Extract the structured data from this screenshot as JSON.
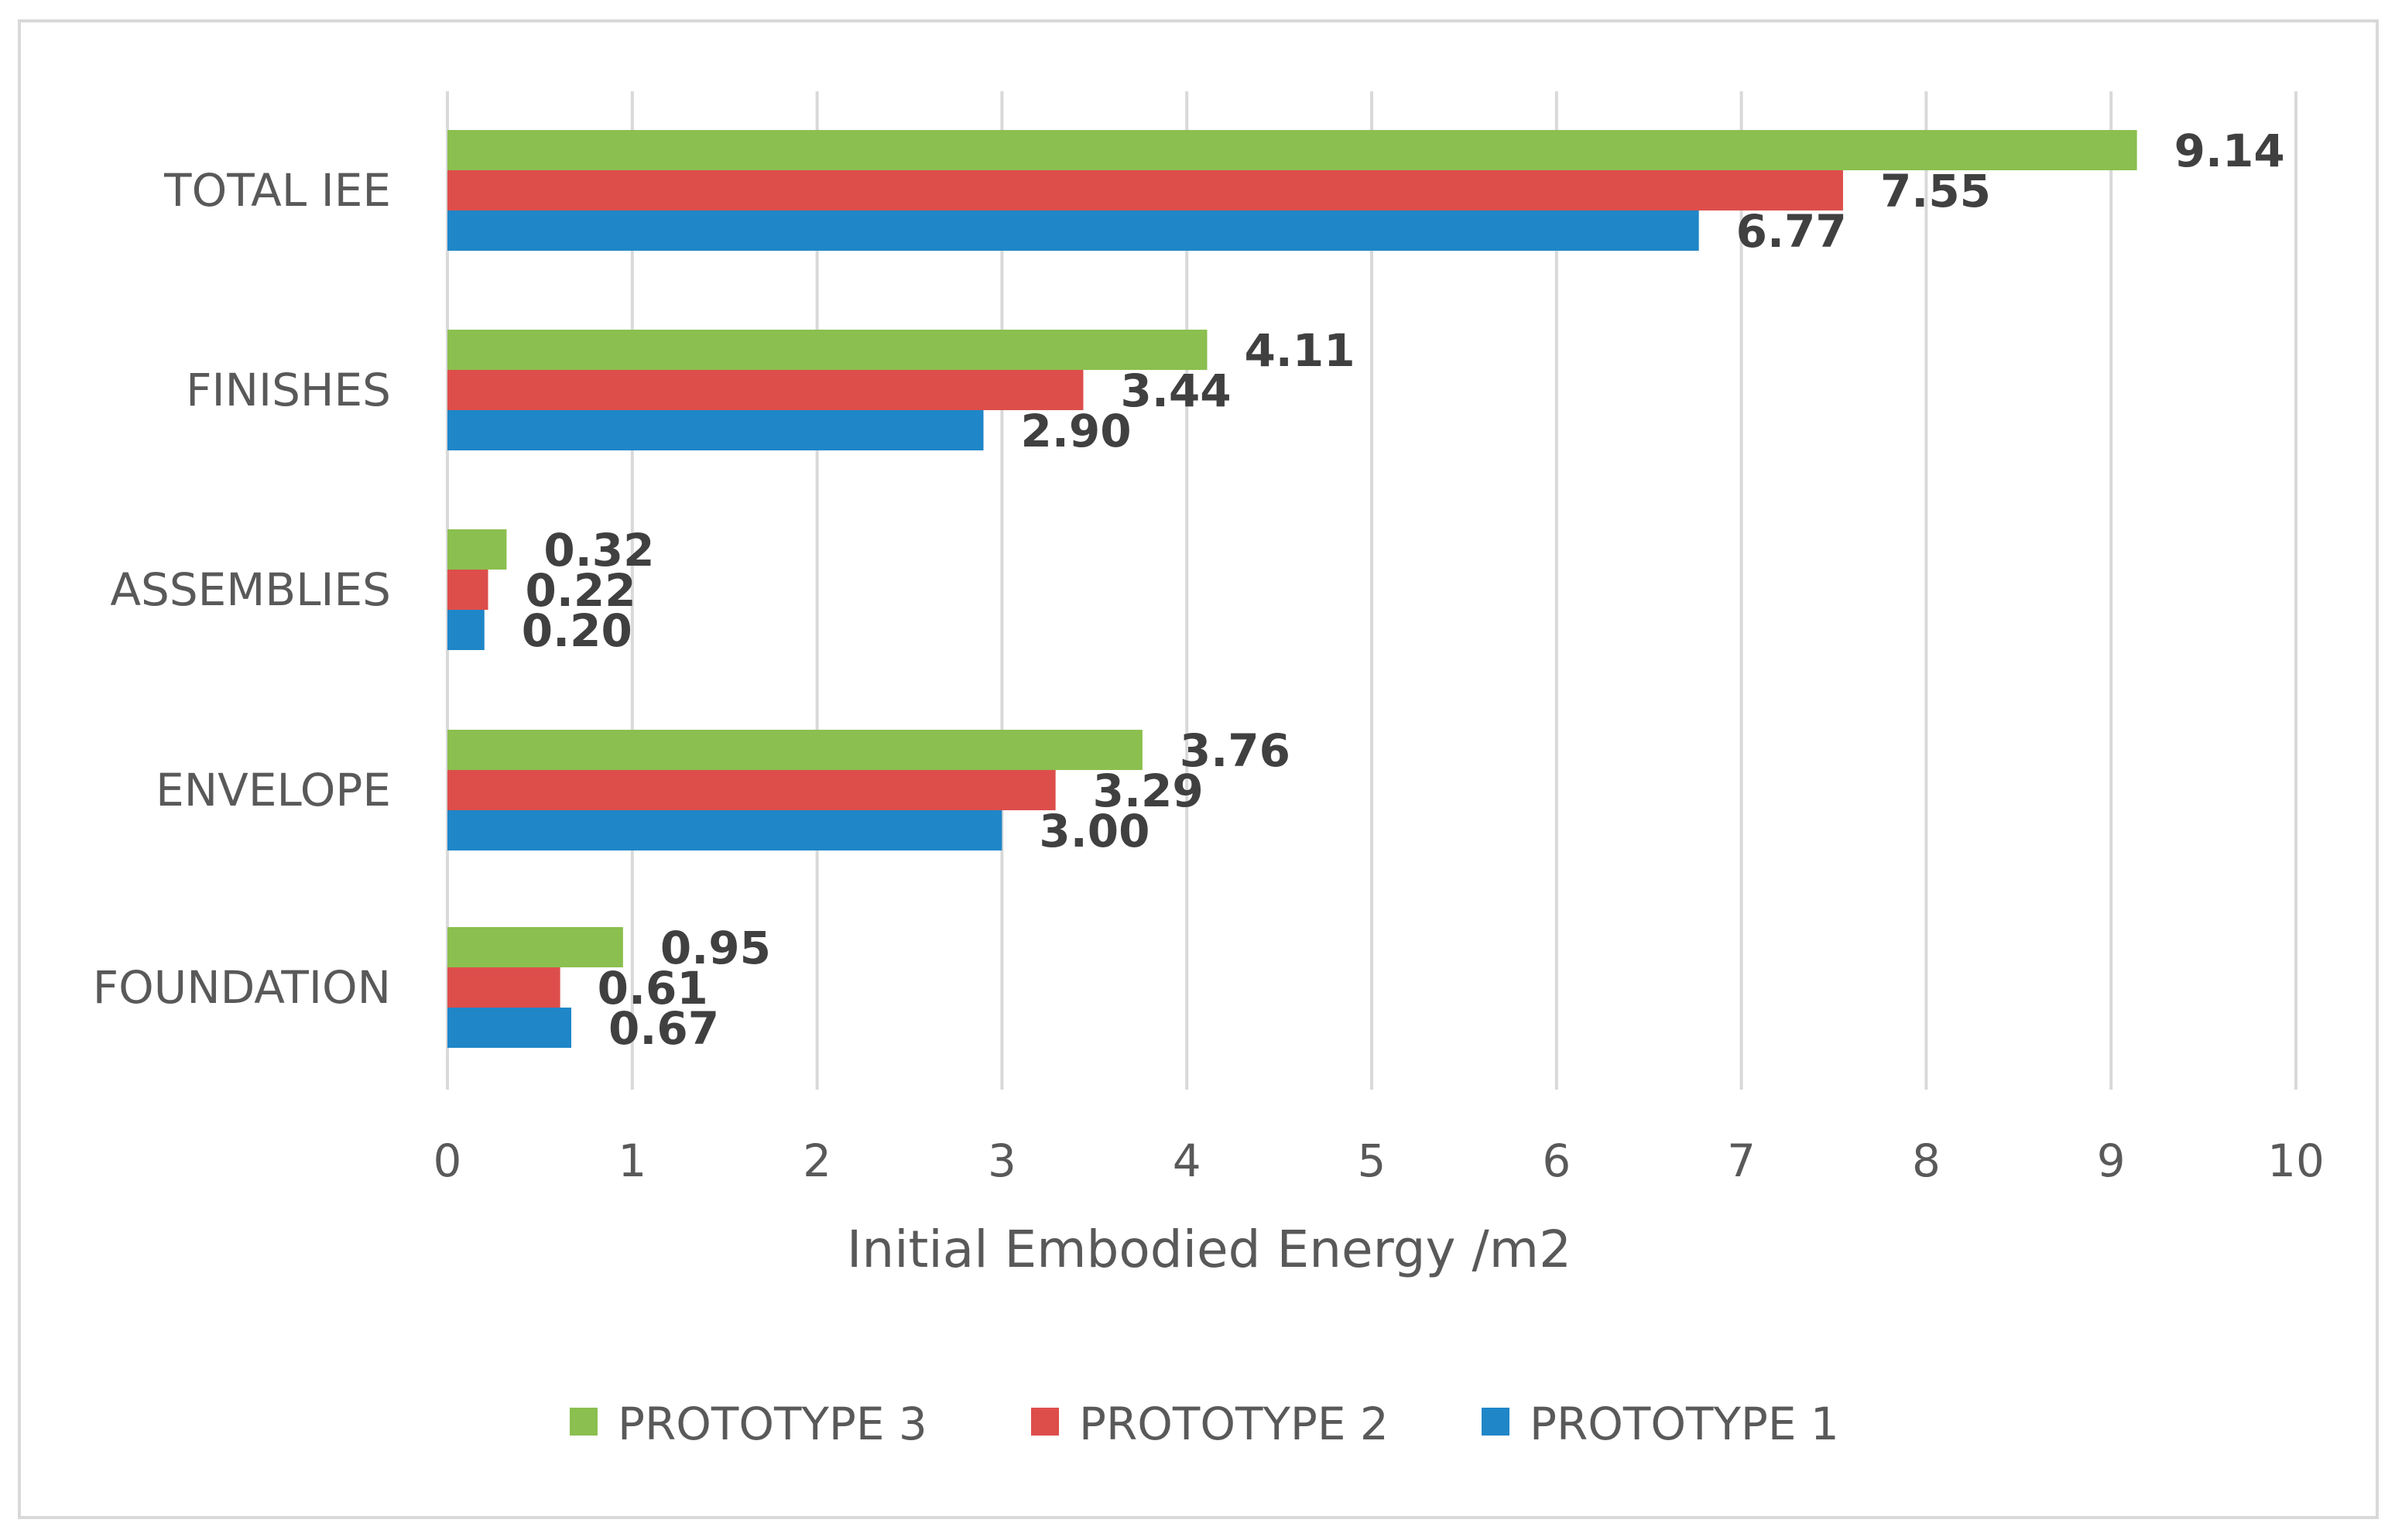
{
  "chart_data": {
    "type": "bar",
    "orientation": "horizontal",
    "title": "",
    "xlabel": "Initial Embodied Energy /m2",
    "ylabel": "",
    "xlim": [
      0,
      10
    ],
    "xticks": [
      "0",
      "1",
      "2",
      "3",
      "4",
      "5",
      "6",
      "7",
      "8",
      "9",
      "10"
    ],
    "grid": true,
    "legend_position": "bottom",
    "categories": [
      "TOTAL IEE",
      "FINISHES",
      "ASSEMBLIES",
      "ENVELOPE",
      "FOUNDATION"
    ],
    "series": [
      {
        "name": "PROTOTYPE 3",
        "color": "#8bbf4f",
        "values": [
          9.14,
          4.11,
          0.32,
          3.76,
          0.95
        ],
        "labels": [
          "9.14",
          "4.11",
          "0.32",
          "3.76",
          "0.95"
        ]
      },
      {
        "name": "PROTOTYPE 2",
        "color": "#dd4e4b",
        "values": [
          7.55,
          3.44,
          0.22,
          3.29,
          0.61
        ],
        "labels": [
          "7.55",
          "3.44",
          "0.22",
          "3.29",
          "0.61"
        ]
      },
      {
        "name": "PROTOTYPE 1",
        "color": "#1f86c8",
        "values": [
          6.77,
          2.9,
          0.2,
          3.0,
          0.67
        ],
        "labels": [
          "6.77",
          "2.90",
          "0.20",
          "3.00",
          "0.67"
        ]
      }
    ]
  }
}
